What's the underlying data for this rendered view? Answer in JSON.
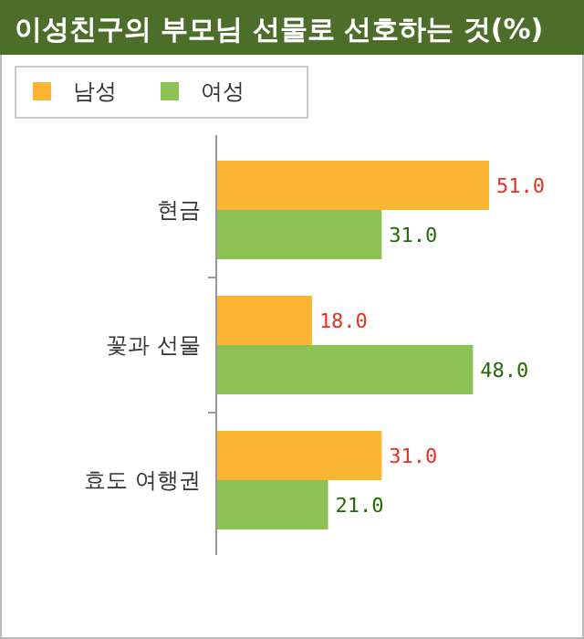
{
  "chart_data": {
    "type": "bar",
    "orientation": "horizontal",
    "title": "이성친구의 부모님 선물로 선호하는 것(%)",
    "categories": [
      "현금",
      "꽃과 선물",
      "효도 여행권"
    ],
    "legend": "top left",
    "series": [
      {
        "name": "남성",
        "color": "#fbb532",
        "values": [
          51,
          18,
          31
        ],
        "value_labels": [
          "51.0",
          "18.0",
          "31.0"
        ]
      },
      {
        "name": "여성",
        "color": "#8cc253",
        "values": [
          31,
          48,
          21
        ],
        "value_labels": [
          "31.0",
          "48.0",
          "21.0"
        ]
      }
    ]
  }
}
